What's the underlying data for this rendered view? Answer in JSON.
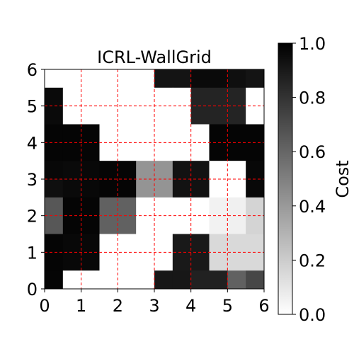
{
  "chart_data": {
    "type": "heatmap",
    "title": "ICRL-WallGrid",
    "xlabel": "",
    "ylabel": "",
    "xlim": [
      0,
      6
    ],
    "ylim": [
      0,
      6
    ],
    "x_ticks": [
      "0",
      "1",
      "2",
      "3",
      "4",
      "5",
      "6"
    ],
    "y_ticks": [
      "0",
      "1",
      "2",
      "3",
      "4",
      "5",
      "6"
    ],
    "grid": true,
    "grid_color": "#ff0000",
    "grid_style": "dashed",
    "colormap": "gray_r",
    "colorbar": {
      "label": "Cost",
      "range": [
        0.0,
        1.0
      ],
      "ticks": [
        "0.0",
        "0.2",
        "0.4",
        "0.6",
        "0.8",
        "1.0"
      ]
    },
    "cell_size": 0.5,
    "rows_top_to_bottom": [
      [
        0.0,
        0.0,
        0.0,
        0.0,
        0.0,
        0.0,
        0.92,
        0.92,
        0.96,
        0.96,
        0.94,
        0.92
      ],
      [
        0.96,
        0.0,
        0.0,
        0.0,
        0.0,
        0.0,
        0.0,
        0.0,
        0.86,
        0.86,
        0.86,
        0.0
      ],
      [
        0.96,
        0.0,
        0.0,
        0.0,
        0.0,
        0.0,
        0.0,
        0.0,
        0.86,
        0.86,
        0.86,
        0.0
      ],
      [
        0.98,
        0.98,
        0.98,
        0.0,
        0.0,
        0.0,
        0.0,
        0.0,
        0.0,
        0.98,
        0.98,
        0.98
      ],
      [
        0.98,
        0.98,
        0.98,
        0.0,
        0.0,
        0.0,
        0.0,
        0.0,
        0.0,
        0.98,
        0.98,
        0.98
      ],
      [
        0.97,
        0.96,
        0.97,
        0.98,
        0.98,
        0.42,
        0.42,
        0.93,
        0.93,
        0.0,
        0.0,
        0.97
      ],
      [
        0.94,
        0.96,
        0.97,
        0.98,
        0.98,
        0.42,
        0.42,
        0.93,
        0.93,
        0.0,
        0.0,
        0.97
      ],
      [
        0.66,
        0.98,
        0.98,
        0.62,
        0.62,
        0.0,
        0.0,
        0.0,
        0.0,
        0.05,
        0.06,
        0.17
      ],
      [
        0.66,
        0.98,
        0.98,
        0.62,
        0.62,
        0.0,
        0.0,
        0.0,
        0.0,
        0.05,
        0.06,
        0.17
      ],
      [
        0.98,
        0.97,
        0.97,
        0.0,
        0.0,
        0.0,
        0.0,
        0.9,
        0.9,
        0.15,
        0.15,
        0.15
      ],
      [
        0.98,
        0.97,
        0.97,
        0.0,
        0.0,
        0.0,
        0.0,
        0.9,
        0.9,
        0.15,
        0.15,
        0.15
      ],
      [
        0.98,
        0.0,
        0.0,
        0.0,
        0.0,
        0.0,
        0.91,
        0.91,
        0.87,
        0.87,
        0.62,
        0.72
      ]
    ]
  }
}
